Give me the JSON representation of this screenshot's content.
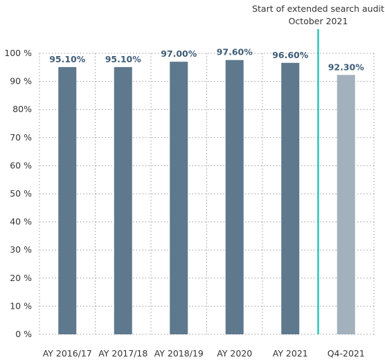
{
  "chart_data": {
    "type": "bar",
    "categories": [
      "AY 2016/17",
      "AY 2017/18",
      "AY 2018/19",
      "AY 2020",
      "AY 2021",
      "Q4-2021"
    ],
    "values": [
      95.1,
      95.1,
      97.0,
      97.6,
      96.6,
      92.3
    ],
    "data_labels": [
      "95.10%",
      "95.10%",
      "97.00%",
      "97.60%",
      "96.60%",
      "92.30%"
    ],
    "y_tick_labels": [
      "0 %",
      "10 %",
      "20 %",
      "30 %",
      "40 %",
      "50 %",
      "60 %",
      "70 %",
      "80%",
      "90 %",
      "100 %"
    ],
    "ylim": [
      0,
      100
    ],
    "grid": true,
    "title": "",
    "xlabel": "",
    "ylabel": "",
    "annotation": {
      "line1": "Start of extended search audit",
      "line2": "October 2021",
      "after_category": "AY 2021",
      "line_color": "#2ec4b6"
    },
    "colors": {
      "bar": "#5e788d",
      "bar_highlight": "#a2b1bd",
      "label": "#3f5d78",
      "grid": "#9a9a9a"
    },
    "highlight_index": 5
  }
}
